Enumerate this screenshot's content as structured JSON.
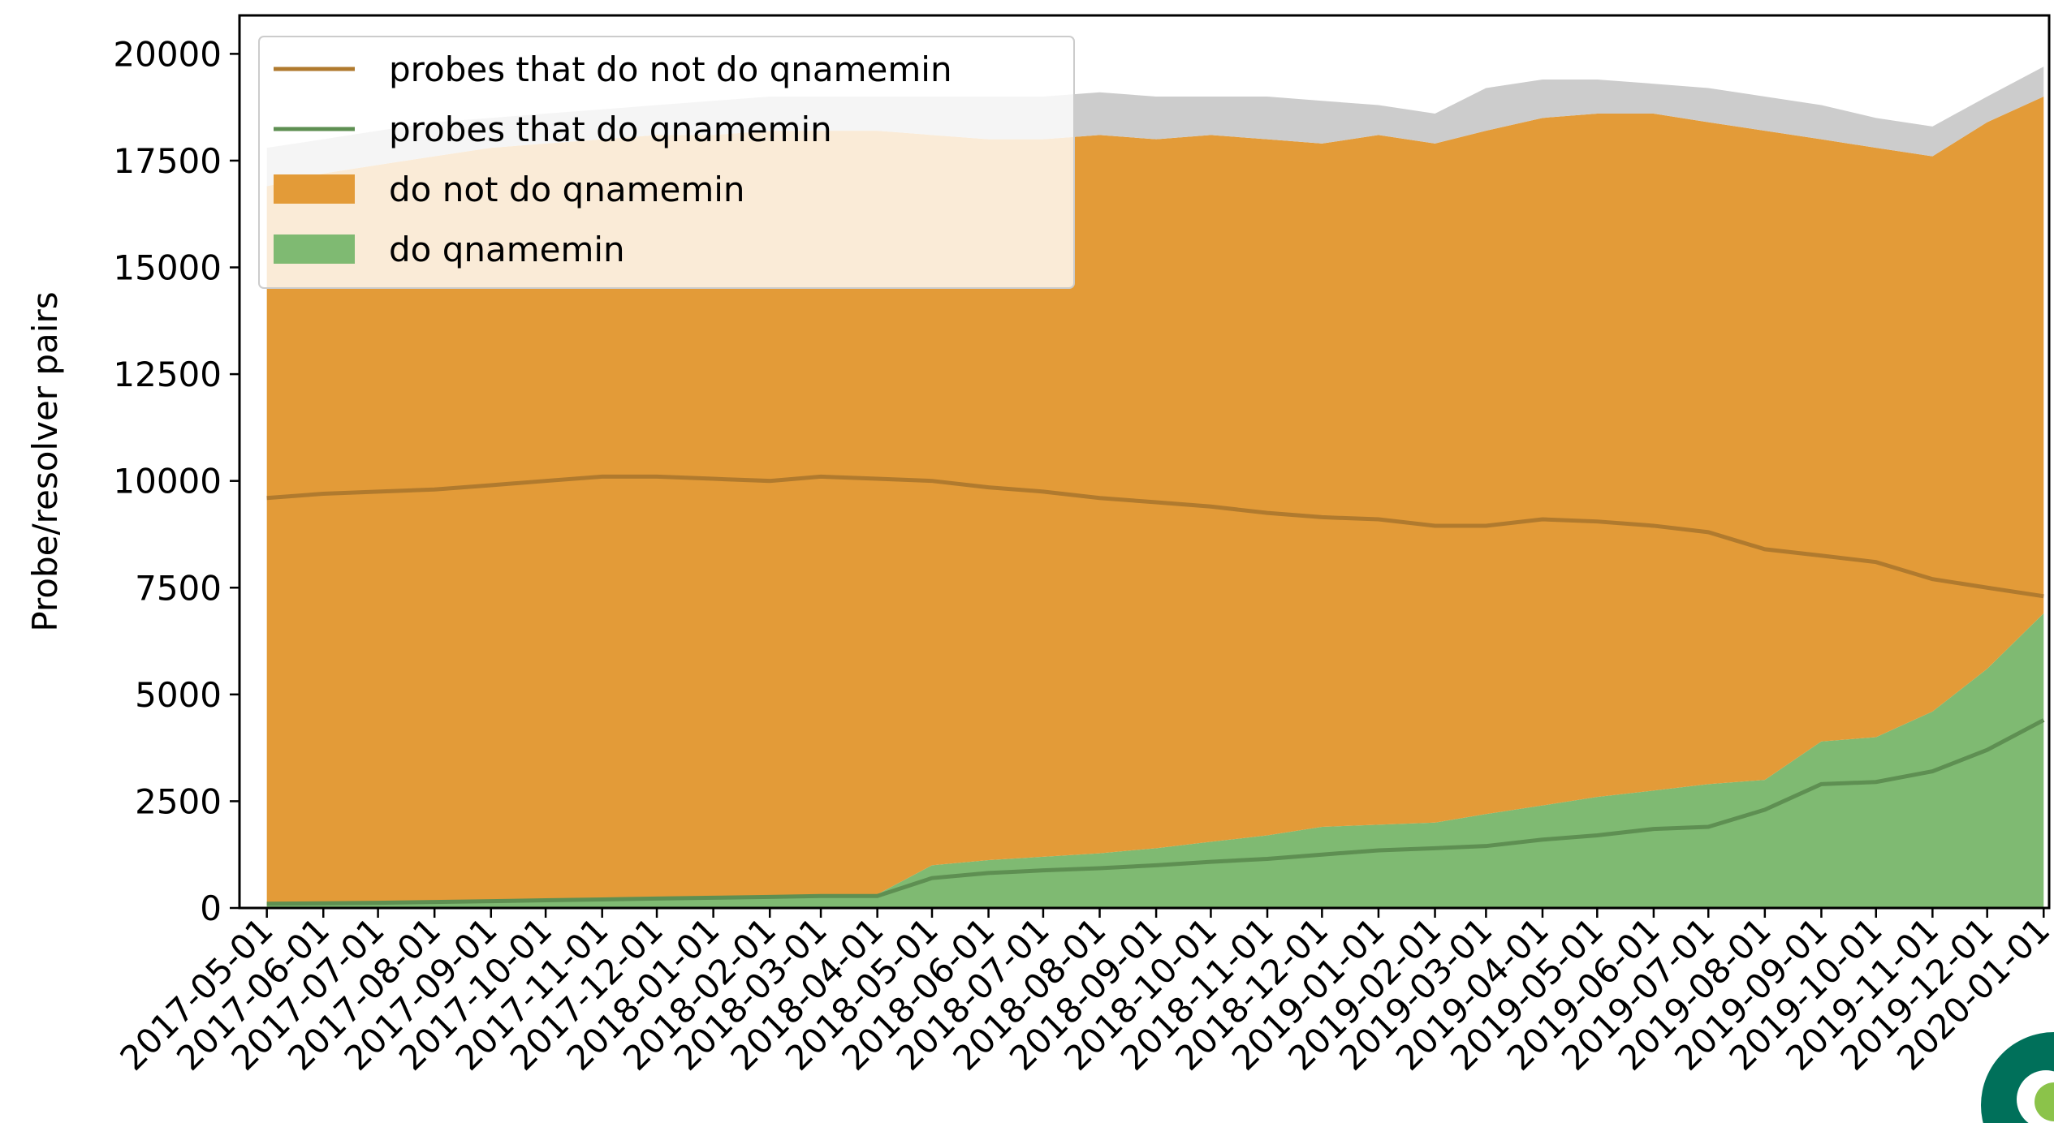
{
  "chart_data": {
    "type": "area",
    "ylabel": "Probe/resolver pairs",
    "x": [
      "2017-05-01",
      "2017-06-01",
      "2017-07-01",
      "2017-08-01",
      "2017-09-01",
      "2017-10-01",
      "2017-11-01",
      "2017-12-01",
      "2018-01-01",
      "2018-02-01",
      "2018-03-01",
      "2018-04-01",
      "2018-05-01",
      "2018-06-01",
      "2018-07-01",
      "2018-08-01",
      "2018-09-01",
      "2018-10-01",
      "2018-11-01",
      "2018-12-01",
      "2019-01-01",
      "2019-02-01",
      "2019-03-01",
      "2019-04-01",
      "2019-05-01",
      "2019-06-01",
      "2019-07-01",
      "2019-08-01",
      "2019-09-01",
      "2019-10-01",
      "2019-11-01",
      "2019-12-01",
      "2020-01-01"
    ],
    "xlim": [
      "2017-04-16",
      "2020-01-04"
    ],
    "xticks": [
      "2017-05-01",
      "2017-06-01",
      "2017-07-01",
      "2017-08-01",
      "2017-09-01",
      "2017-10-01",
      "2017-11-01",
      "2017-12-01",
      "2018-01-01",
      "2018-02-01",
      "2018-03-01",
      "2018-04-01",
      "2018-05-01",
      "2018-06-01",
      "2018-07-01",
      "2018-08-01",
      "2018-09-01",
      "2018-10-01",
      "2018-11-01",
      "2018-12-01",
      "2019-01-01",
      "2019-02-01",
      "2019-03-01",
      "2019-04-01",
      "2019-05-01",
      "2019-06-01",
      "2019-07-01",
      "2019-08-01",
      "2019-09-01",
      "2019-10-01",
      "2019-11-01",
      "2019-12-01",
      "2020-01-01"
    ],
    "ylim": [
      0,
      20900
    ],
    "yticks": [
      0,
      2500,
      5000,
      7500,
      10000,
      12500,
      15000,
      17500,
      20000
    ],
    "legend": "upper left",
    "series": [
      {
        "name": "probes that do not do qnamemin",
        "type": "line",
        "color": "#b07a2e",
        "values": [
          9600,
          9700,
          9750,
          9800,
          9900,
          10000,
          10100,
          10100,
          10050,
          10000,
          10100,
          10050,
          10000,
          9850,
          9750,
          9600,
          9500,
          9400,
          9250,
          9150,
          9100,
          8950,
          8950,
          9100,
          9050,
          8950,
          8800,
          8400,
          8250,
          8100,
          7700,
          7500,
          7300
        ]
      },
      {
        "name": "probes that do qnamemin",
        "type": "line",
        "color": "#5e8f52",
        "values": [
          100,
          110,
          120,
          140,
          160,
          180,
          200,
          220,
          240,
          260,
          280,
          280,
          700,
          820,
          880,
          930,
          1000,
          1080,
          1150,
          1250,
          1350,
          1400,
          1450,
          1600,
          1700,
          1850,
          1900,
          2300,
          2900,
          2950,
          3200,
          3700,
          4400
        ]
      },
      {
        "type": "area",
        "color": "#cccccc",
        "values": [
          900,
          800,
          800,
          800,
          700,
          700,
          700,
          700,
          800,
          800,
          800,
          800,
          900,
          1000,
          1000,
          1000,
          1000,
          900,
          1000,
          1000,
          700,
          700,
          1000,
          900,
          800,
          700,
          800,
          800,
          800,
          700,
          700,
          600,
          700
        ]
      },
      {
        "name": "do not do qnamemin",
        "type": "area",
        "color": "#e39b38",
        "values": [
          16800,
          17090,
          17280,
          17460,
          17640,
          17710,
          17780,
          17850,
          17830,
          17910,
          17890,
          17880,
          17100,
          16880,
          16800,
          16820,
          16600,
          16550,
          16300,
          16000,
          16150,
          15900,
          16000,
          16100,
          16000,
          15850,
          15500,
          15200,
          14100,
          13800,
          13000,
          12800,
          12100
        ]
      },
      {
        "name": "do qnamemin",
        "type": "area",
        "color": "#7fba72",
        "values": [
          100,
          110,
          120,
          140,
          160,
          190,
          220,
          250,
          270,
          290,
          310,
          320,
          1000,
          1120,
          1200,
          1280,
          1400,
          1550,
          1700,
          1900,
          1950,
          2000,
          2200,
          2400,
          2600,
          2750,
          2900,
          3000,
          3900,
          4000,
          4600,
          5600,
          6900
        ]
      }
    ]
  }
}
